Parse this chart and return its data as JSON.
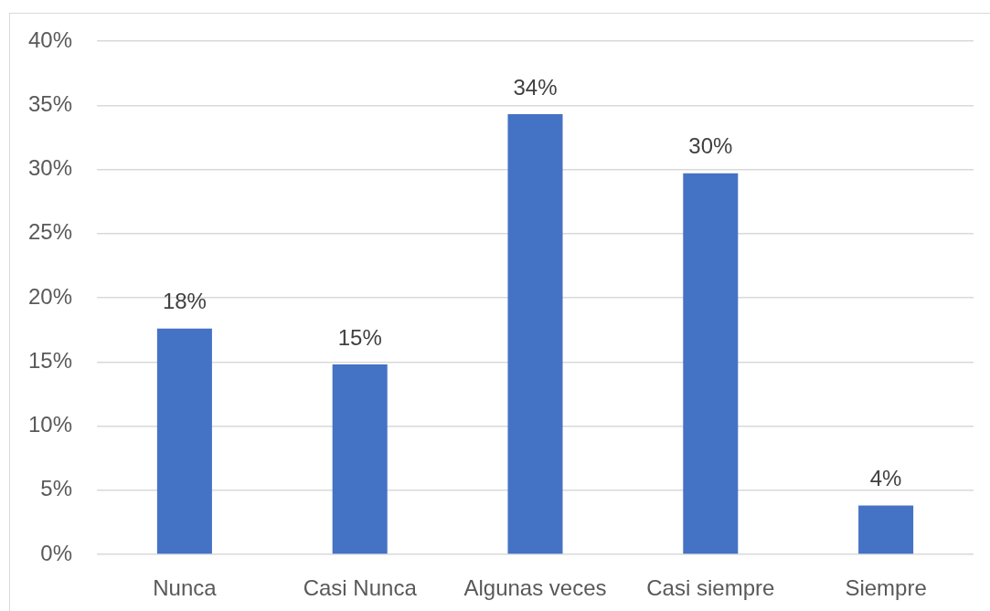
{
  "chart_data": {
    "type": "bar",
    "categories": [
      "Nunca",
      "Casi Nunca",
      "Algunas veces",
      "Casi siempre",
      "Siempre"
    ],
    "values": [
      17.6,
      14.8,
      34.3,
      29.7,
      3.8
    ],
    "value_labels": [
      "18%",
      "15%",
      "34%",
      "30%",
      "4%"
    ],
    "color": "#4472c4",
    "ylim": [
      0,
      40
    ],
    "yticks": [
      {
        "value": 0,
        "label": "0%"
      },
      {
        "value": 5,
        "label": "5%"
      },
      {
        "value": 10,
        "label": "10%"
      },
      {
        "value": 15,
        "label": "15%"
      },
      {
        "value": 20,
        "label": "20%"
      },
      {
        "value": 25,
        "label": "25%"
      },
      {
        "value": 30,
        "label": "30%"
      },
      {
        "value": 35,
        "label": "35%"
      },
      {
        "value": 40,
        "label": "40%"
      }
    ],
    "grid": "y"
  }
}
